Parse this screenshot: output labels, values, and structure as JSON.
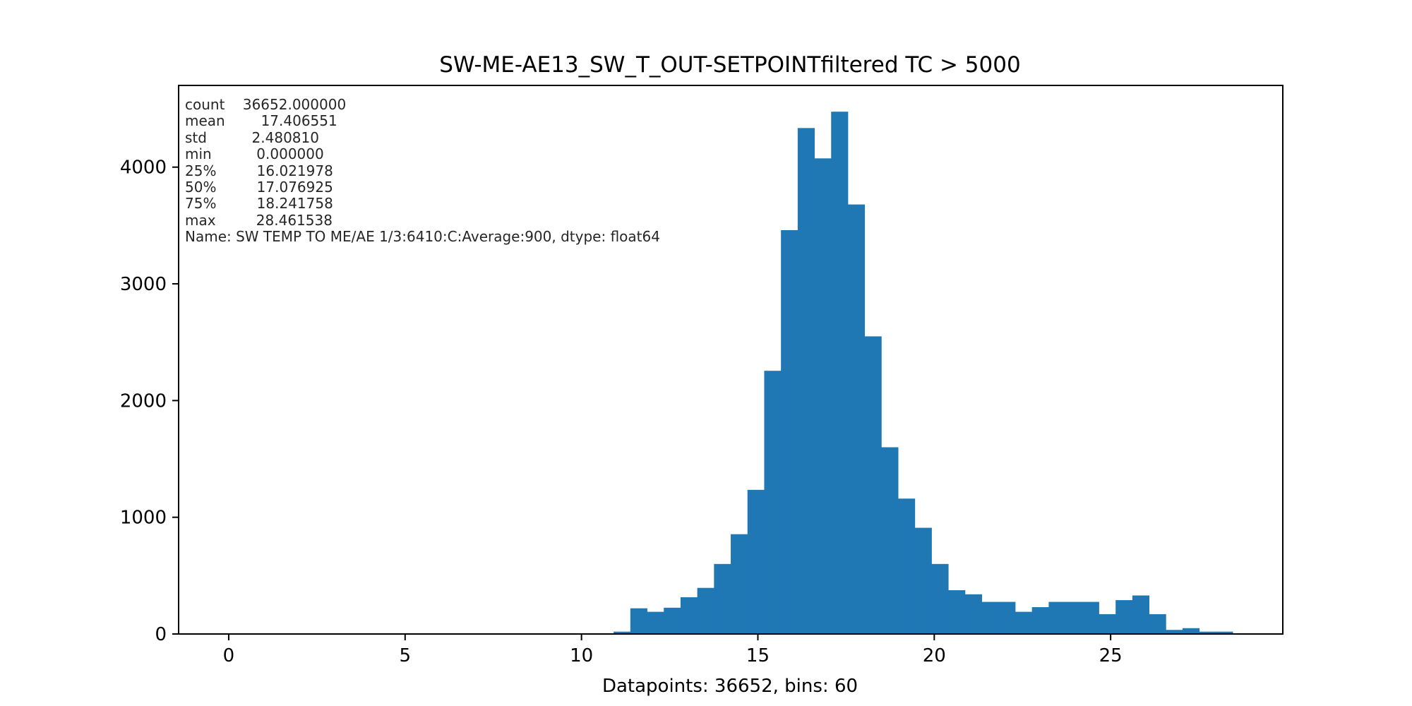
{
  "chart_data": {
    "type": "bar",
    "title": "SW-ME-AE13_SW_T_OUT-SETPOINTfiltered TC > 5000",
    "xlabel": "Datapoints: 36652, bins: 60",
    "ylabel": "",
    "bar_color": "#1f77b4",
    "xlim": [
      -1.42,
      29.88
    ],
    "ylim": [
      0,
      4700
    ],
    "grid": false,
    "x_ticks": [
      0,
      5,
      10,
      15,
      20,
      25
    ],
    "y_ticks": [
      0,
      1000,
      2000,
      3000,
      4000
    ],
    "bin_start": 0.0,
    "bin_width": 0.474359,
    "values": [
      0,
      0,
      0,
      0,
      0,
      0,
      0,
      0,
      0,
      0,
      0,
      0,
      0,
      0,
      0,
      0,
      0,
      0,
      0,
      0,
      0,
      0,
      0,
      20,
      220,
      190,
      225,
      315,
      395,
      600,
      855,
      1235,
      2255,
      3460,
      4335,
      4075,
      4475,
      3680,
      2550,
      1600,
      1160,
      910,
      600,
      375,
      340,
      275,
      275,
      190,
      230,
      275,
      275,
      275,
      170,
      290,
      330,
      170,
      35,
      50,
      20,
      20
    ],
    "stats_lines": [
      "count    36652.000000",
      "mean        17.406551",
      "std          2.480810",
      "min          0.000000",
      "25%         16.021978",
      "50%         17.076925",
      "75%         18.241758",
      "max         28.461538",
      "Name: SW TEMP TO ME/AE 1/3:6410:C:Average:900, dtype: float64"
    ]
  }
}
